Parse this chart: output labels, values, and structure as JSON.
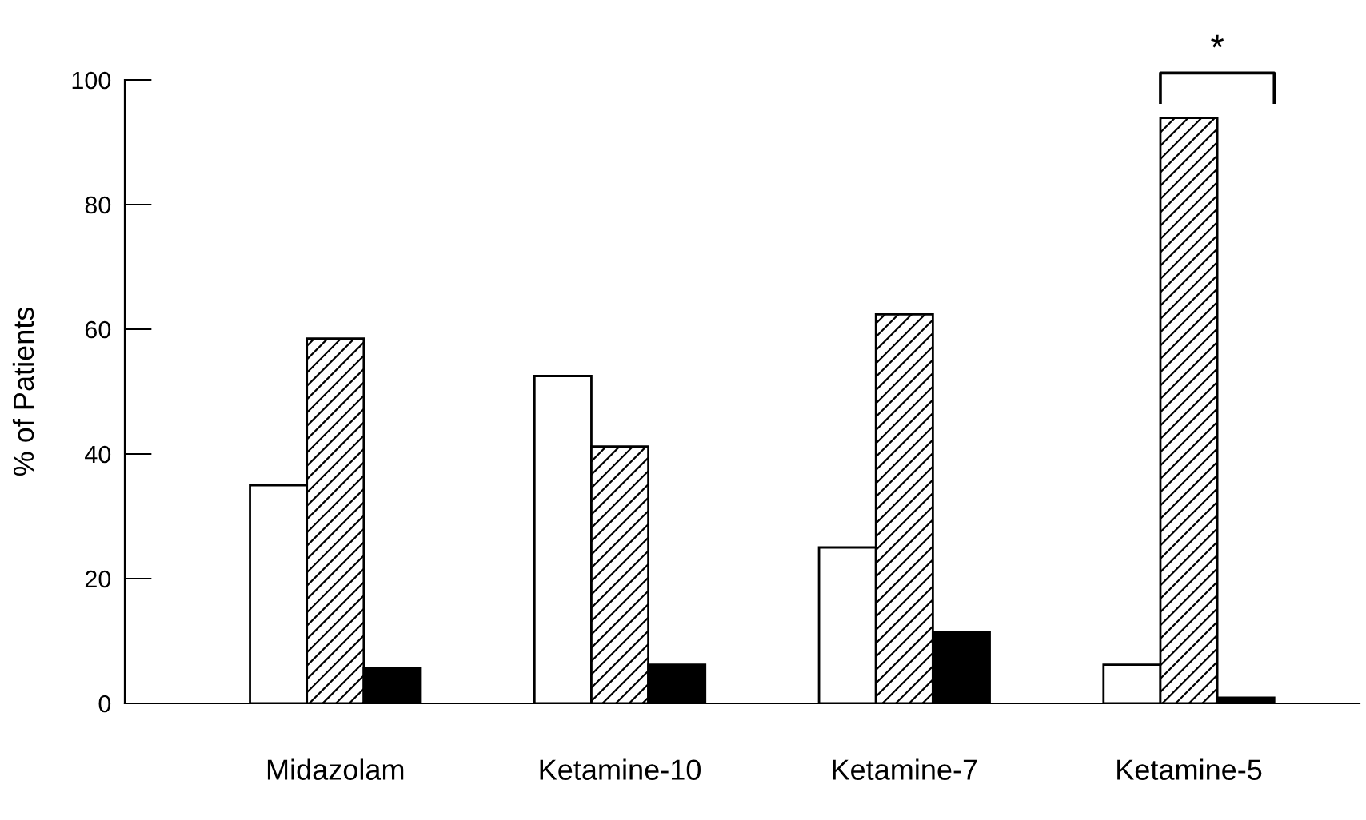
{
  "chart_data": {
    "type": "bar",
    "ylabel": "% of Patients",
    "categories": [
      "Midazolam",
      "Ketamine-10",
      "Ketamine-7",
      "Ketamine-5"
    ],
    "series": [
      {
        "color": "#ffffff",
        "values": [
          35,
          52.5,
          25,
          6.2
        ]
      },
      {
        "color": "#000000",
        "values": [
          58.5,
          41.2,
          62.4,
          93.9
        ]
      },
      {
        "color": "#000000",
        "values": [
          5.6,
          6.2,
          11.5,
          0.9
        ]
      }
    ],
    "ylim": [
      0,
      100
    ],
    "yticks": [
      0,
      20,
      40,
      60,
      80,
      100
    ],
    "grid": false,
    "legend": false,
    "annotations": [
      "*"
    ]
  }
}
